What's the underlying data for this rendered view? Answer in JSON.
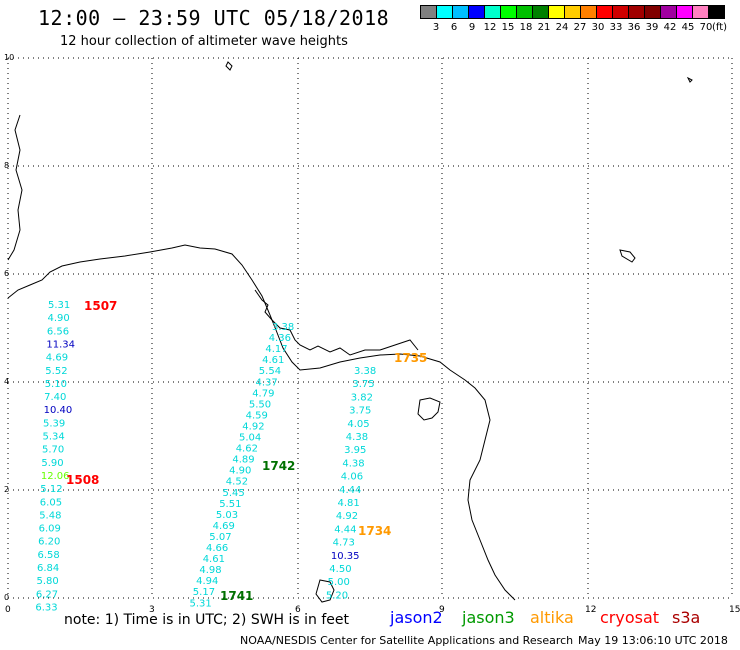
{
  "title": "12:00 – 23:59 UTC 05/18/2018",
  "subtitle": "12 hour collection of altimeter wave heights",
  "colorbar": {
    "unit": "(ft)",
    "colors": [
      "#808080",
      "#00ffff",
      "#00bfff",
      "#0000ff",
      "#00ffcc",
      "#00ff00",
      "#00c000",
      "#008000",
      "#ffff00",
      "#ffcc00",
      "#ff8000",
      "#ff0000",
      "#d00000",
      "#a00000",
      "#800000",
      "#a000a0",
      "#ff00ff",
      "#ff80c0",
      "#000000"
    ],
    "ticks": [
      "3",
      "6",
      "9",
      "12",
      "15",
      "18",
      "21",
      "24",
      "27",
      "30",
      "33",
      "36",
      "39",
      "42",
      "45",
      "70"
    ]
  },
  "axes": {
    "x_ticks": [
      "0",
      "3",
      "6",
      "9",
      "12",
      "15"
    ],
    "y_ticks": [
      "0",
      "2",
      "4",
      "6",
      "8",
      "10"
    ]
  },
  "colors": {
    "coast": "#000000",
    "grid": "#000000",
    "swh_light": "#00d8d8",
    "swh_blue": "#0000c0",
    "swh_green": "#66ff00",
    "time_red": "#ff0000",
    "time_green": "#007000",
    "time_orange": "#ff9900"
  },
  "tracks": [
    {
      "name": "track-west",
      "values": [
        "5.31",
        "4.90",
        "6.56",
        "11.34",
        "4.69",
        "5.52",
        "5.10",
        "7.40",
        "10.40",
        "5.39",
        "5.34",
        "5.70",
        "5.90",
        "12.06",
        "5.12",
        "6.05",
        "5.48",
        "6.09",
        "6.20",
        "6.58",
        "6.84",
        "5.80",
        "6.27",
        "6.33"
      ],
      "colors": [
        "l",
        "l",
        "l",
        "b",
        "l",
        "l",
        "l",
        "l",
        "b",
        "l",
        "l",
        "l",
        "l",
        "g",
        "l",
        "l",
        "l",
        "l",
        "l",
        "l",
        "l",
        "l",
        "l",
        "l"
      ]
    },
    {
      "name": "track-middle",
      "values": [
        "3.38",
        "4.36",
        "4.17",
        "4.61",
        "5.54",
        "4.37",
        "4.79",
        "5.50",
        "4.59",
        "4.92",
        "5.04",
        "4.62",
        "4.89",
        "4.90",
        "4.52",
        "5.45",
        "5.51",
        "5.03",
        "4.69",
        "5.07",
        "4.66",
        "4.61",
        "4.98",
        "4.94",
        "5.17",
        "5.31"
      ],
      "colors": [
        "l",
        "l",
        "l",
        "l",
        "l",
        "l",
        "l",
        "l",
        "l",
        "l",
        "l",
        "l",
        "l",
        "l",
        "l",
        "l",
        "l",
        "l",
        "l",
        "l",
        "l",
        "l",
        "l",
        "l",
        "l",
        "l"
      ]
    },
    {
      "name": "track-east",
      "values": [
        "3.38",
        "3.75",
        "3.82",
        "3.75",
        "4.05",
        "4.38",
        "3.95",
        "4.38",
        "4.06",
        "4.44",
        "4.81",
        "4.92",
        "4.44",
        "4.73",
        "10.35",
        "4.50",
        "5.00",
        "5.20"
      ],
      "colors": [
        "l",
        "l",
        "l",
        "l",
        "l",
        "l",
        "l",
        "l",
        "l",
        "l",
        "l",
        "l",
        "l",
        "l",
        "b",
        "l",
        "l",
        "l"
      ]
    }
  ],
  "time_labels": [
    {
      "text": "1507",
      "color": "time_red"
    },
    {
      "text": "1508",
      "color": "time_red"
    },
    {
      "text": "1742",
      "color": "time_green"
    },
    {
      "text": "1741",
      "color": "time_green"
    },
    {
      "text": "1735",
      "color": "time_orange"
    },
    {
      "text": "1734",
      "color": "time_orange"
    }
  ],
  "note": "note:  1) Time is in UTC;  2) SWH is in feet",
  "satellites": [
    {
      "name": "jason2",
      "color": "#0000ff"
    },
    {
      "name": "jason3",
      "color": "#009900"
    },
    {
      "name": "altika",
      "color": "#ff9900"
    },
    {
      "name": "cryosat",
      "color": "#ff0000"
    },
    {
      "name": "s3a",
      "color": "#aa0000"
    }
  ],
  "credit": "NOAA/NESDIS Center for Satellite Applications and Research",
  "timestamp": "May 19 13:06:10 UTC 2018"
}
